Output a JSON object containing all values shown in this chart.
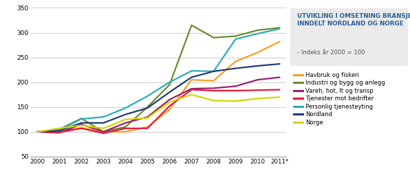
{
  "title_line1": "UTVIKLING I OMSETNING BRANSJE-",
  "title_line2": "INNDELT NORDLAND OG NORGE",
  "title_line3": "- Indeks år 2000 = 100",
  "years": [
    2000,
    2001,
    2002,
    2003,
    2004,
    2005,
    2006,
    2007,
    2008,
    2009,
    2010,
    2011
  ],
  "xlabels": [
    "2000",
    "2001",
    "2002",
    "2003",
    "2004",
    "2005",
    "2006",
    "2007",
    "2008",
    "2009",
    "2010",
    "2011*"
  ],
  "series": [
    {
      "label": "Havbruk og fiskeri",
      "color": "#f5a020",
      "values": [
        100,
        100,
        108,
        100,
        100,
        110,
        145,
        205,
        203,
        242,
        260,
        282
      ]
    },
    {
      "label": "Industri og bygg og anlegg",
      "color": "#6a8a2e",
      "values": [
        100,
        105,
        127,
        100,
        110,
        150,
        195,
        315,
        290,
        293,
        305,
        310
      ]
    },
    {
      "label": "Vareh, hot, It og transp",
      "color": "#9b1f6e",
      "values": [
        100,
        98,
        115,
        100,
        118,
        130,
        165,
        187,
        188,
        192,
        205,
        210
      ]
    },
    {
      "label": "Tjenester mot bedrifter",
      "color": "#e8173a",
      "values": [
        100,
        99,
        107,
        97,
        107,
        107,
        152,
        185,
        183,
        183,
        184,
        185
      ]
    },
    {
      "label": "Personlig tjenesteyting",
      "color": "#2aacb8",
      "values": [
        100,
        103,
        126,
        130,
        148,
        172,
        200,
        223,
        222,
        287,
        298,
        308
      ]
    },
    {
      "label": "Nordland",
      "color": "#1f3a7a",
      "values": [
        100,
        102,
        118,
        118,
        135,
        148,
        180,
        210,
        222,
        228,
        233,
        237
      ]
    },
    {
      "label": "Norge",
      "color": "#d4d600",
      "values": [
        100,
        107,
        113,
        107,
        125,
        128,
        160,
        175,
        163,
        162,
        167,
        170
      ]
    }
  ],
  "ylim": [
    50,
    355
  ],
  "yticks": [
    50,
    100,
    150,
    200,
    250,
    300,
    350
  ],
  "bg_color": "#ffffff",
  "title_box_color": "#ebebeb",
  "title_color_main": "#2b6096",
  "title_color_sub": "#555555",
  "grid_color": "#cccccc",
  "linewidth": 1.6
}
